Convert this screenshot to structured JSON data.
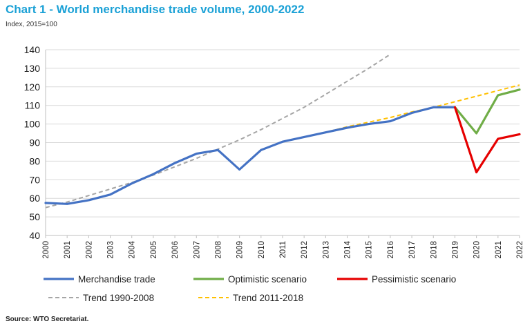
{
  "chart_data": {
    "type": "line",
    "title": "Chart 1 - World merchandise trade volume, 2000-2022",
    "subtitle": "Index, 2015=100",
    "source": "Source:   WTO Secretariat.",
    "x": [
      "2000",
      "2001",
      "2002",
      "2003",
      "2004",
      "2005",
      "2006",
      "2007",
      "2008",
      "2009",
      "2010",
      "2011",
      "2012",
      "2013",
      "2014",
      "2015",
      "2016",
      "2017",
      "2018",
      "2019",
      "2020",
      "2021",
      "2022"
    ],
    "ylim": [
      40,
      140
    ],
    "yticks": [
      "40",
      "50",
      "60",
      "70",
      "80",
      "90",
      "100",
      "110",
      "120",
      "130",
      "140"
    ],
    "grid": true,
    "legend_position": "bottom",
    "series": [
      {
        "name": "Merchandise trade",
        "color": "#4472c4",
        "style": "solid",
        "points": [
          [
            2000,
            57.5
          ],
          [
            2001,
            57
          ],
          [
            2002,
            59
          ],
          [
            2003,
            62
          ],
          [
            2004,
            68
          ],
          [
            2005,
            73
          ],
          [
            2006,
            79
          ],
          [
            2007,
            84
          ],
          [
            2008,
            86
          ],
          [
            2009,
            75.5
          ],
          [
            2010,
            86
          ],
          [
            2011,
            90.5
          ],
          [
            2012,
            93
          ],
          [
            2013,
            95.5
          ],
          [
            2014,
            98
          ],
          [
            2015,
            100
          ],
          [
            2016,
            101.5
          ],
          [
            2017,
            106
          ],
          [
            2018,
            109
          ],
          [
            2019,
            109
          ]
        ]
      },
      {
        "name": "Optimistic scenario",
        "color": "#70ad47",
        "style": "solid",
        "points": [
          [
            2019,
            109
          ],
          [
            2020,
            95
          ],
          [
            2021,
            115.5
          ],
          [
            2022,
            118.5
          ]
        ]
      },
      {
        "name": "Pessimistic scenario",
        "color": "#e60000",
        "style": "solid",
        "points": [
          [
            2019,
            109
          ],
          [
            2020,
            74
          ],
          [
            2021,
            92
          ],
          [
            2022,
            94.5
          ]
        ]
      },
      {
        "name": "Trend 1990-2008",
        "color": "#a6a6a6",
        "style": "dashed",
        "points": [
          [
            2000,
            55
          ],
          [
            2001,
            58
          ],
          [
            2002,
            61.5
          ],
          [
            2003,
            65
          ],
          [
            2004,
            68.5
          ],
          [
            2005,
            72.5
          ],
          [
            2006,
            77
          ],
          [
            2007,
            81.5
          ],
          [
            2008,
            86.5
          ],
          [
            2009,
            91.5
          ],
          [
            2010,
            97
          ],
          [
            2011,
            103
          ],
          [
            2012,
            109
          ],
          [
            2013,
            116
          ],
          [
            2014,
            123
          ],
          [
            2015,
            130
          ],
          [
            2016,
            137.5
          ]
        ]
      },
      {
        "name": "Trend 2011-2018",
        "color": "#ffc000",
        "style": "dashed",
        "points": [
          [
            2011,
            90.5
          ],
          [
            2012,
            93
          ],
          [
            2013,
            95.5
          ],
          [
            2014,
            98.5
          ],
          [
            2015,
            101
          ],
          [
            2016,
            103.5
          ],
          [
            2017,
            106.5
          ],
          [
            2018,
            109
          ],
          [
            2019,
            112
          ],
          [
            2020,
            115
          ],
          [
            2021,
            118
          ],
          [
            2022,
            121
          ]
        ]
      }
    ]
  }
}
